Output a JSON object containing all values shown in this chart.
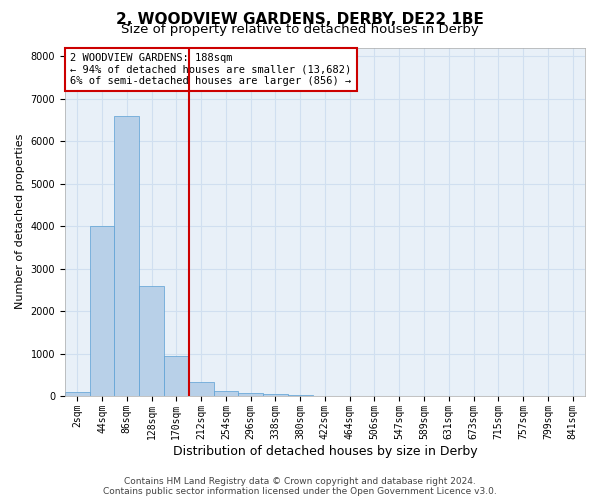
{
  "title": "2, WOODVIEW GARDENS, DERBY, DE22 1BE",
  "subtitle": "Size of property relative to detached houses in Derby",
  "xlabel": "Distribution of detached houses by size in Derby",
  "ylabel": "Number of detached properties",
  "bar_labels": [
    "2sqm",
    "44sqm",
    "86sqm",
    "128sqm",
    "170sqm",
    "212sqm",
    "254sqm",
    "296sqm",
    "338sqm",
    "380sqm",
    "422sqm",
    "464sqm",
    "506sqm",
    "547sqm",
    "589sqm",
    "631sqm",
    "673sqm",
    "715sqm",
    "757sqm",
    "799sqm",
    "841sqm"
  ],
  "bar_values": [
    100,
    4000,
    6600,
    2600,
    950,
    320,
    130,
    80,
    60,
    30,
    0,
    0,
    0,
    0,
    0,
    0,
    0,
    0,
    0,
    0,
    0
  ],
  "bar_color": "#b8d0e8",
  "bar_edge_color": "#5a9fd4",
  "vline_x": 4.5,
  "vline_color": "#cc0000",
  "annotation_text": "2 WOODVIEW GARDENS: 188sqm\n← 94% of detached houses are smaller (13,682)\n6% of semi-detached houses are larger (856) →",
  "annotation_box_color": "#cc0000",
  "ylim": [
    0,
    8200
  ],
  "yticks": [
    0,
    1000,
    2000,
    3000,
    4000,
    5000,
    6000,
    7000,
    8000
  ],
  "grid_color": "#d0dff0",
  "background_color": "#e8f0f8",
  "footer_text": "Contains HM Land Registry data © Crown copyright and database right 2024.\nContains public sector information licensed under the Open Government Licence v3.0.",
  "title_fontsize": 11,
  "subtitle_fontsize": 9.5,
  "xlabel_fontsize": 9,
  "ylabel_fontsize": 8,
  "tick_fontsize": 7,
  "annotation_fontsize": 7.5,
  "footer_fontsize": 6.5
}
